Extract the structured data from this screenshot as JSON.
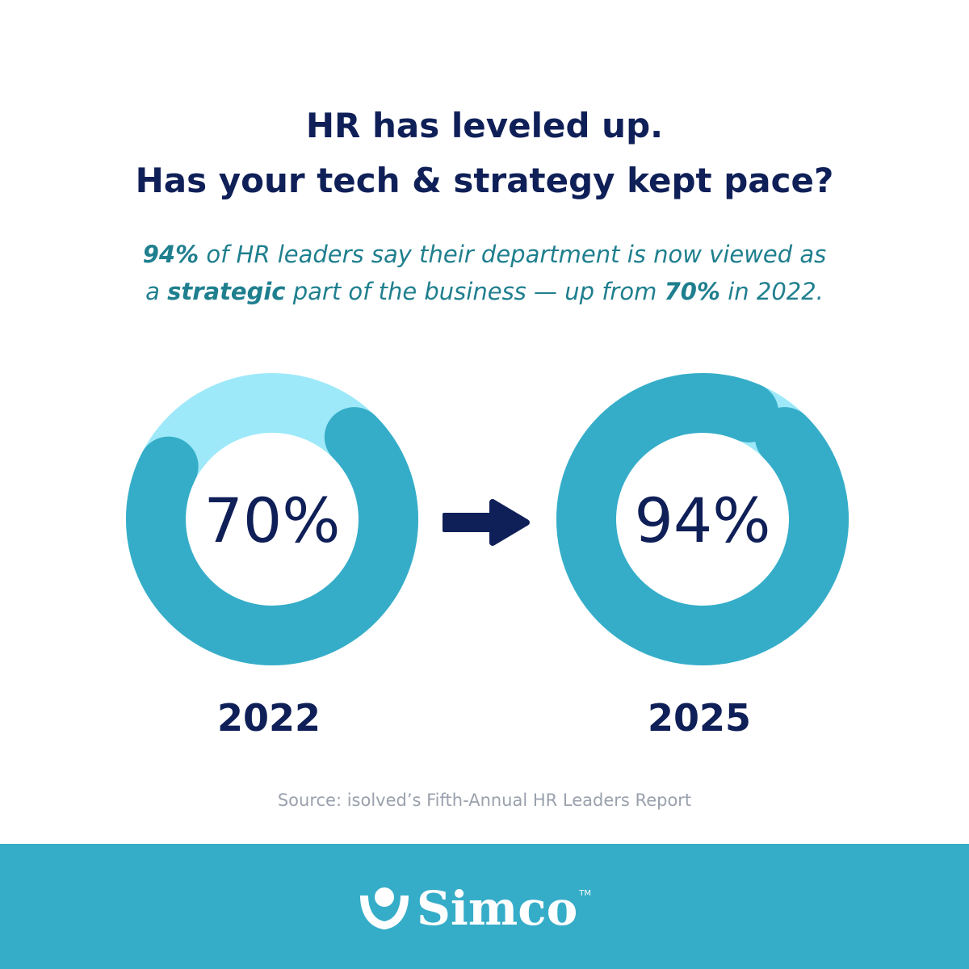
{
  "headline": {
    "line1": "HR has leveled up.",
    "line2": "Has your tech & strategy kept pace?"
  },
  "subtitle": {
    "pct_2025": "94%",
    "text1": " of HR leaders say their department is now viewed as",
    "text2": "a ",
    "strategic": "strategic",
    "text3": " part of the business — up from ",
    "pct_2022": "70%",
    "text4": " in 2022."
  },
  "source": "Source: isolved’s Fifth-Annual HR Leaders Report",
  "logo": {
    "text": "Simco",
    "tm": "TM"
  },
  "colors": {
    "navy": "#0f1f57",
    "teal": "#36adc8",
    "light_teal": "#9ee9f9",
    "subtitle_teal": "#1f7f8e"
  },
  "icons": {
    "arrow": "arrow-right-icon",
    "logo_mark": "simco-logo-mark-icon"
  },
  "chart_data": {
    "type": "donut",
    "items": [
      {
        "label": "2022",
        "value": 70,
        "display": "70%"
      },
      {
        "label": "2025",
        "value": 94,
        "display": "94%"
      }
    ],
    "max": 100
  }
}
